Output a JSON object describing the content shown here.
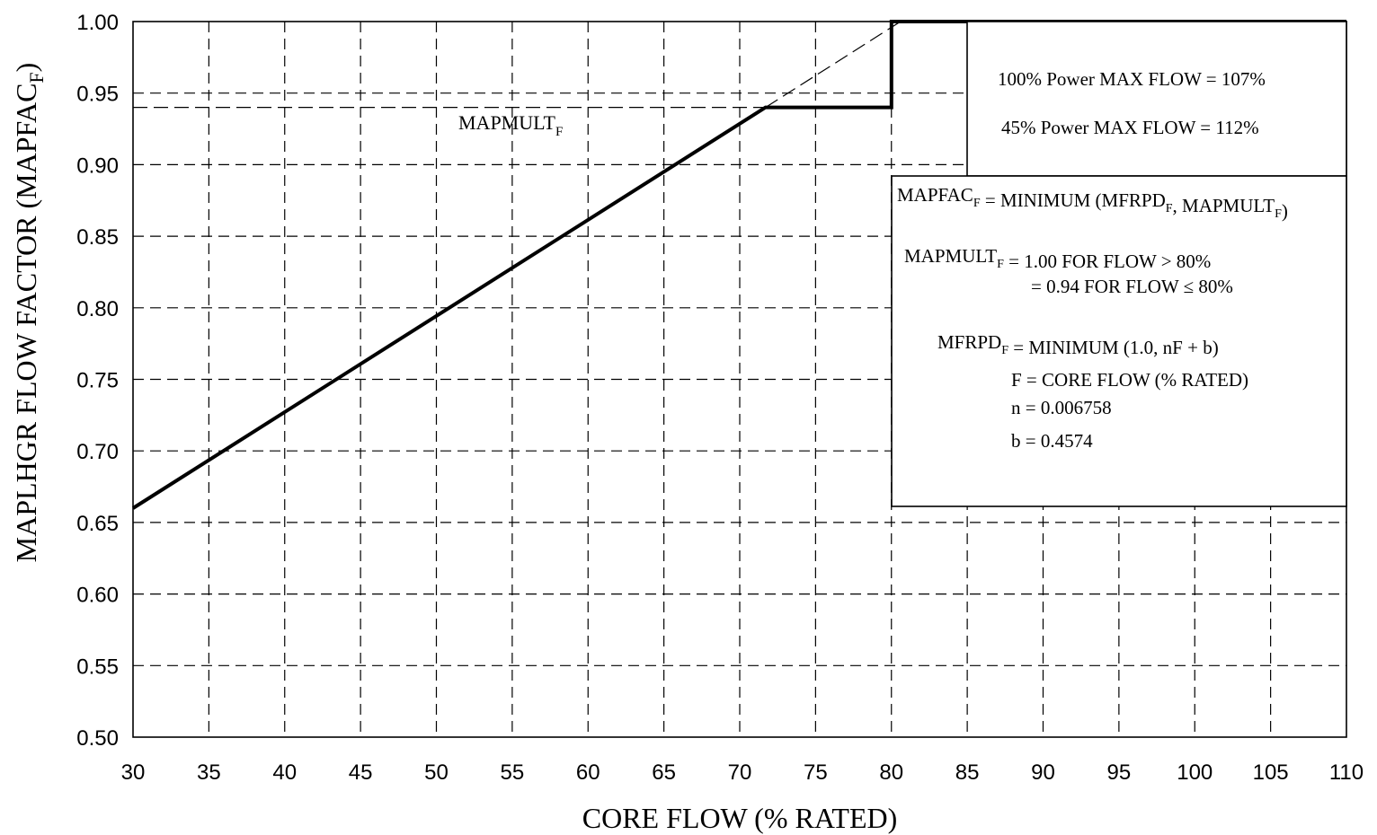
{
  "chart_data": {
    "type": "line",
    "xlabel": "CORE FLOW (% RATED)",
    "ylabel_main": "MAPLHGR FLOW FACTOR (MAPFAC",
    "ylabel_sub": "F",
    "ylabel_close": ")",
    "xlim": [
      30,
      110
    ],
    "ylim": [
      0.5,
      1.0
    ],
    "x_ticks": [
      "30",
      "35",
      "40",
      "45",
      "50",
      "55",
      "60",
      "65",
      "70",
      "75",
      "80",
      "85",
      "90",
      "95",
      "100",
      "105",
      "110"
    ],
    "y_ticks": [
      "0.50",
      "0.55",
      "0.60",
      "0.65",
      "0.70",
      "0.75",
      "0.80",
      "0.85",
      "0.90",
      "0.95",
      "1.00"
    ],
    "grid": true,
    "series": [
      {
        "style": "solid-thick",
        "x": [
          30,
          71.7,
          80,
          80,
          110
        ],
        "y": [
          0.66,
          0.94,
          0.94,
          1.0,
          1.0
        ]
      },
      {
        "style": "dashed-extension",
        "x": [
          71.7,
          80.6
        ],
        "y": [
          0.94,
          1.0
        ]
      },
      {
        "style": "dashed-reference",
        "x": [
          30,
          71.7
        ],
        "y": [
          0.94,
          0.94
        ]
      }
    ],
    "annotations": {
      "mapmult_label": {
        "main": "MAPMULT",
        "sub": "F"
      },
      "box_top": {
        "line1": "100% Power MAX FLOW = 107%",
        "line2": "45% Power MAX FLOW = 112%"
      },
      "box_main": {
        "eq1": [
          {
            "t": "MAPFAC"
          },
          {
            "t": "F",
            "sub": true
          },
          {
            "t": " = MINIMUM (MFRPD"
          },
          {
            "t": "F",
            "sub": true
          },
          {
            "t": ", MAPMULT"
          },
          {
            "t": "F",
            "sub": true
          },
          {
            "t": ")"
          }
        ],
        "eq2": [
          {
            "t": "MAPMULT"
          },
          {
            "t": "F",
            "sub": true
          },
          {
            "t": " = 1.00 FOR FLOW > 80%"
          }
        ],
        "eq3": "= 0.94 FOR FLOW ≤ 80%",
        "eq4": [
          {
            "t": "MFRPD"
          },
          {
            "t": "F",
            "sub": true
          },
          {
            "t": " = MINIMUM (1.0, nF + b)"
          }
        ],
        "eq5": "F = CORE FLOW (% RATED)",
        "eq6": "n = 0.006758",
        "eq7": "b = 0.4574"
      }
    }
  }
}
